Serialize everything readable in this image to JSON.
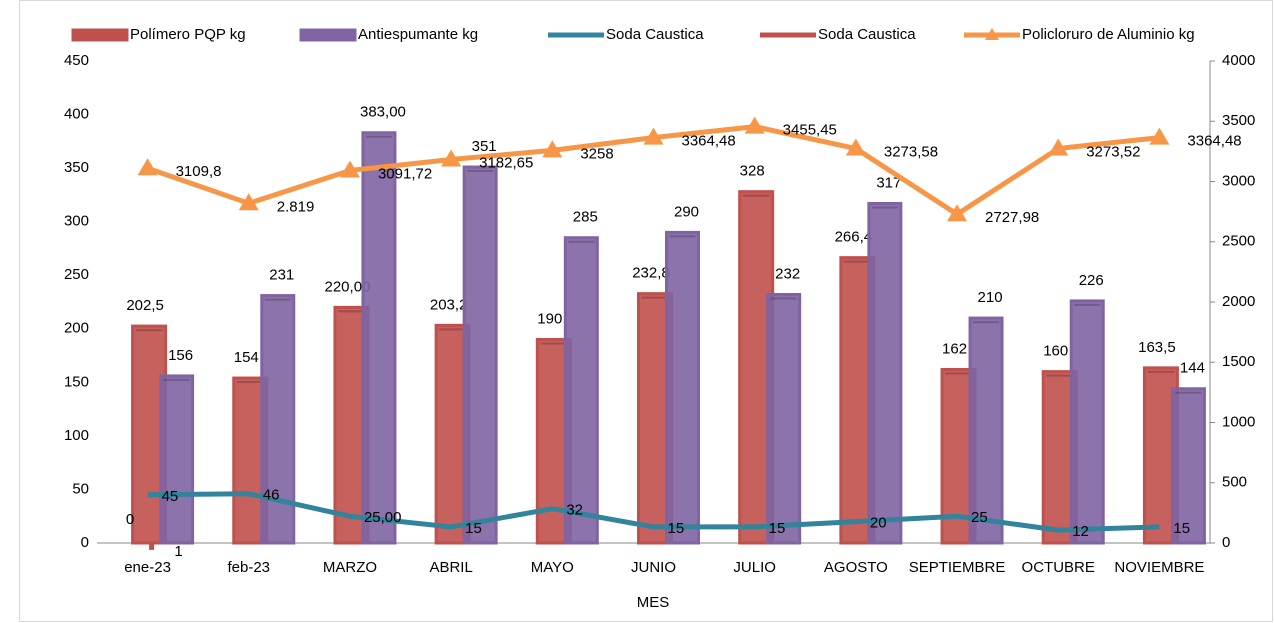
{
  "chart_data": {
    "type": "bar",
    "x_label": "MES",
    "categories": [
      "ene-23",
      "feb-23",
      "MARZO",
      "ABRIL",
      "MAYO",
      "JUNIO",
      "JULIO",
      "AGOSTO",
      "SEPTIEMBRE",
      "OCTUBRE",
      "NOVIEMBRE"
    ],
    "ylim": [
      0,
      450
    ],
    "yticks": [
      0,
      50,
      100,
      150,
      200,
      250,
      300,
      350,
      400,
      450
    ],
    "y2lim": [
      0,
      4000
    ],
    "y2ticks": [
      0,
      500,
      1000,
      1500,
      2000,
      2500,
      3000,
      3500,
      4000
    ],
    "grid": false,
    "legend": "top",
    "annotations": [
      "0"
    ],
    "series": [
      {
        "name": "Polímero PQP kg",
        "type": "bar",
        "color": "#c0504d",
        "values": [
          202.5,
          154,
          220,
          203.2,
          190,
          232.8,
          328,
          266.4,
          162,
          160,
          163.5
        ],
        "value_labels": [
          "202,5",
          "154",
          "220,00",
          "203,2",
          "190",
          "232,8",
          "328",
          "266,4",
          "162",
          "160",
          "163,5"
        ]
      },
      {
        "name": "Antiespumante kg",
        "type": "bar",
        "color": "#8064a2",
        "values": [
          156,
          231,
          383,
          351,
          285,
          290,
          232,
          317,
          210,
          226,
          144
        ],
        "value_labels": [
          "156",
          "231",
          "383,00",
          "351",
          "285",
          "290",
          "232",
          "317",
          "210",
          "226",
          "144"
        ]
      },
      {
        "name": "Soda Caustica",
        "type": "line",
        "color": "#31849b",
        "values": [
          45,
          46,
          25,
          15,
          32,
          15,
          15,
          20,
          25,
          12,
          15
        ],
        "value_labels": [
          "45",
          "46",
          "25,00",
          "15",
          "32",
          "15",
          "15",
          "20",
          "25",
          "12",
          "15"
        ]
      },
      {
        "name": "Soda Caustica",
        "type": "line",
        "color": "#c0504d",
        "values": [
          1,
          null,
          null,
          null,
          null,
          null,
          null,
          null,
          null,
          null,
          null
        ]
      },
      {
        "name": "Policloruro de Aluminio kg",
        "type": "line",
        "axis": "y2",
        "marker": "triangle",
        "color": "#f79646",
        "values": [
          3109.8,
          2819,
          3091.72,
          3182.65,
          3258,
          3364.48,
          3455.45,
          3273.58,
          2727.98,
          3273.52,
          3364.48
        ],
        "value_labels": [
          "3109,8",
          "2.819",
          "3091,72",
          "3182,65",
          "3258",
          "3364,48",
          "3455,45",
          "3273,58",
          "2727,98",
          "3273,52",
          "3364,48"
        ]
      }
    ]
  }
}
